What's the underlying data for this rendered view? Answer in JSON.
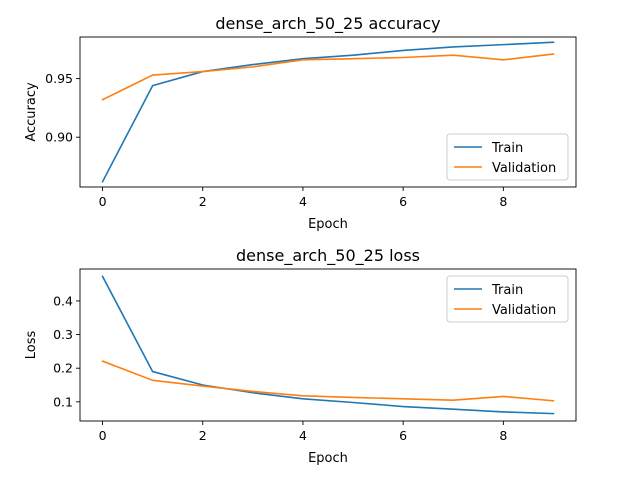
{
  "chart_data": [
    {
      "type": "line",
      "title": "dense_arch_50_25 accuracy",
      "xlabel": "Epoch",
      "ylabel": "Accuracy",
      "xlim": [
        -0.45,
        9.45
      ],
      "ylim": [
        0.8575,
        0.9855
      ],
      "xticks": [
        0,
        2,
        4,
        6,
        8
      ],
      "yticks": [
        0.9,
        0.95
      ],
      "ytick_labels": [
        "0.90",
        "0.95"
      ],
      "legend_position": "lower-right",
      "x": [
        0,
        1,
        2,
        3,
        4,
        5,
        6,
        7,
        8,
        9
      ],
      "series": [
        {
          "name": "Train",
          "color": "#1f77b4",
          "values": [
            0.862,
            0.944,
            0.956,
            0.962,
            0.967,
            0.97,
            0.974,
            0.977,
            0.979,
            0.981
          ]
        },
        {
          "name": "Validation",
          "color": "#ff7f0e",
          "values": [
            0.932,
            0.953,
            0.956,
            0.96,
            0.966,
            0.967,
            0.968,
            0.97,
            0.966,
            0.971
          ]
        }
      ]
    },
    {
      "type": "line",
      "title": "dense_arch_50_25 loss",
      "xlabel": "Epoch",
      "ylabel": "Loss",
      "xlim": [
        -0.45,
        9.45
      ],
      "ylim": [
        0.043,
        0.495
      ],
      "xticks": [
        0,
        2,
        4,
        6,
        8
      ],
      "yticks": [
        0.1,
        0.2,
        0.3,
        0.4
      ],
      "ytick_labels": [
        "0.1",
        "0.2",
        "0.3",
        "0.4"
      ],
      "legend_position": "upper-right",
      "x": [
        0,
        1,
        2,
        3,
        4,
        5,
        6,
        7,
        8,
        9
      ],
      "series": [
        {
          "name": "Train",
          "color": "#1f77b4",
          "values": [
            0.473,
            0.19,
            0.15,
            0.127,
            0.109,
            0.098,
            0.086,
            0.078,
            0.07,
            0.065
          ]
        },
        {
          "name": "Validation",
          "color": "#ff7f0e",
          "values": [
            0.221,
            0.164,
            0.147,
            0.131,
            0.118,
            0.113,
            0.109,
            0.105,
            0.116,
            0.103
          ]
        }
      ]
    }
  ]
}
